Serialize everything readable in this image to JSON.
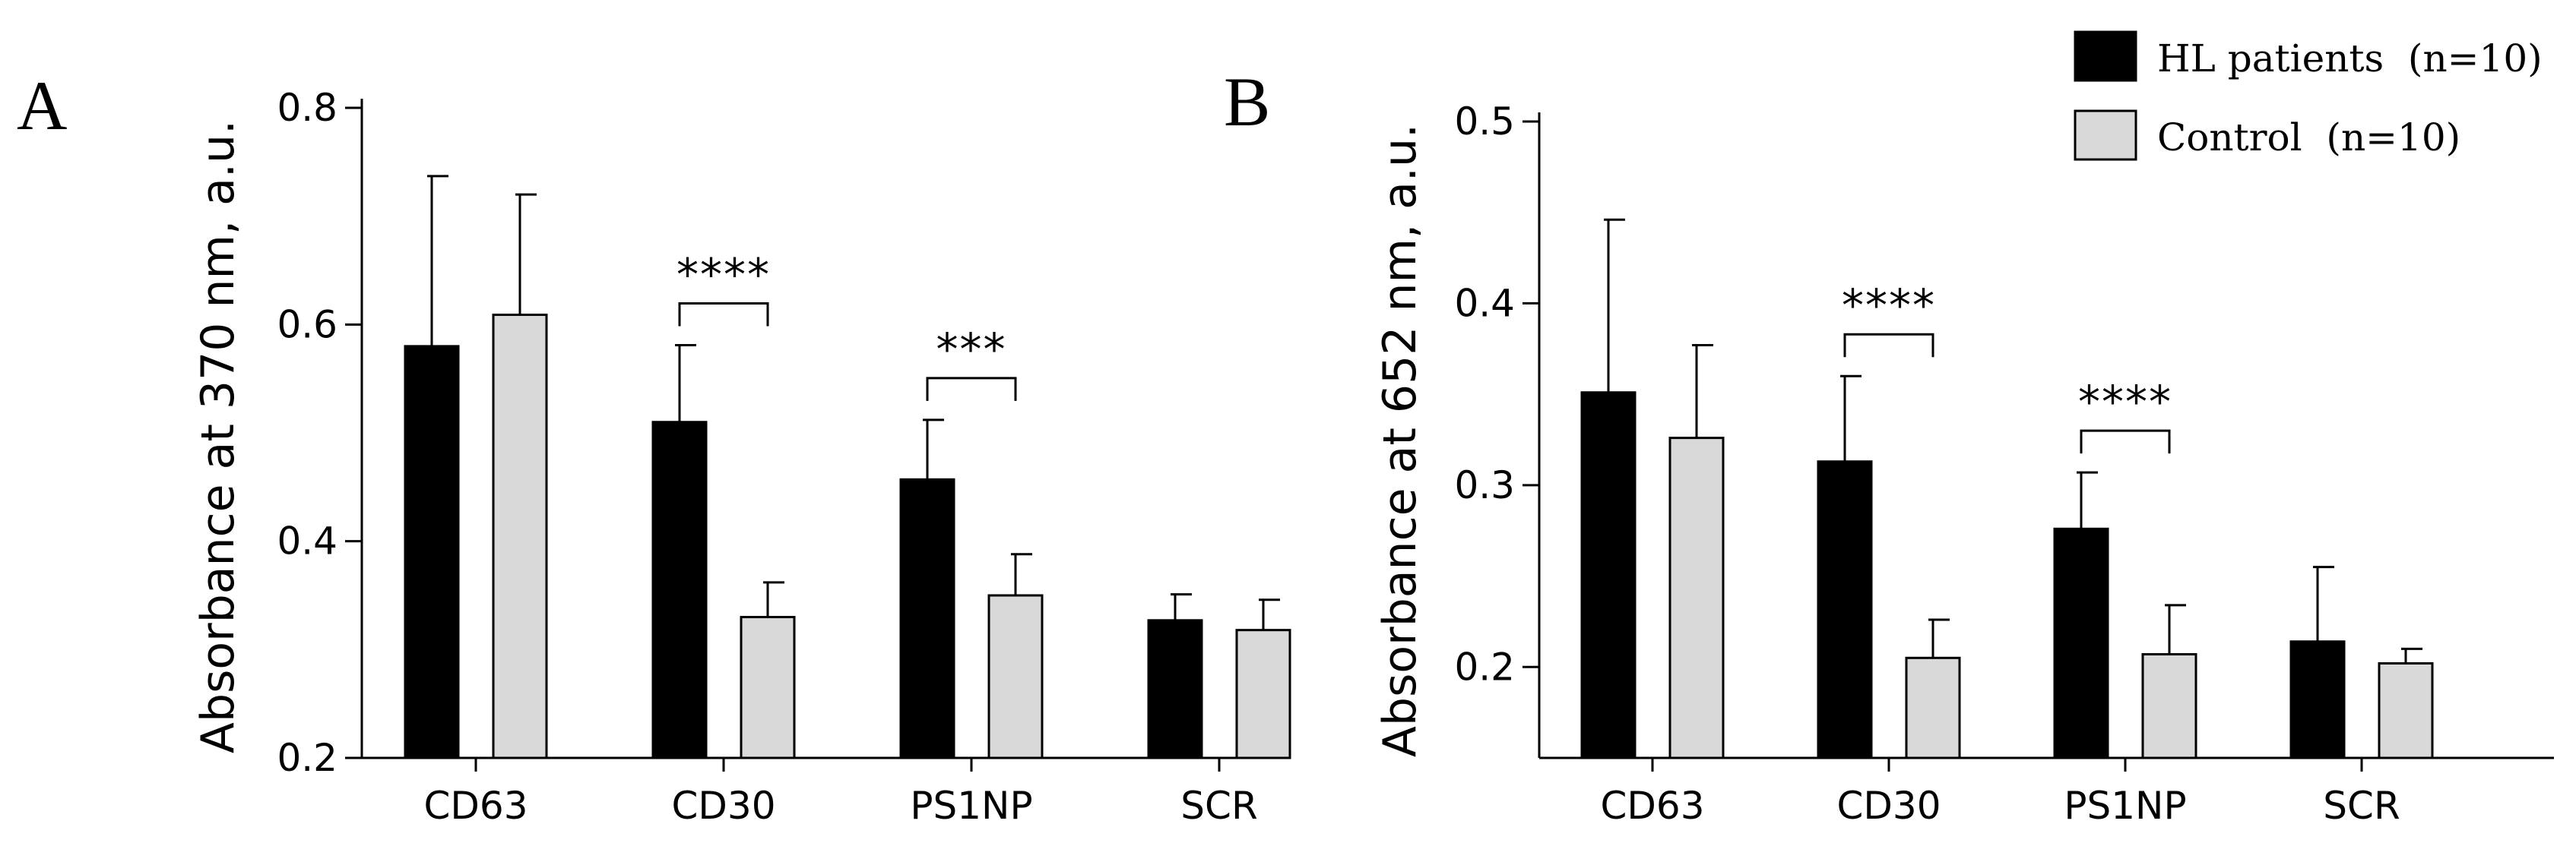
{
  "legend": {
    "items": [
      {
        "label": "HL patients  (n=10)",
        "color": "#000000"
      },
      {
        "label": "Control  (n=10)",
        "color": "#d9d9d9"
      }
    ]
  },
  "chart_data": [
    {
      "panel": "A",
      "type": "bar",
      "ylabel": "Absorbance at 370 nm, a.u.",
      "ylim": [
        0.2,
        0.8
      ],
      "yticks": [
        0.2,
        0.4,
        0.6,
        0.8
      ],
      "ytick_labels": [
        "0.2",
        "0.4",
        "0.6",
        "0.8"
      ],
      "categories": [
        "CD63",
        "CD30",
        "PS1NP",
        "SCR"
      ],
      "series": [
        {
          "name": "HL patients (n=10)",
          "color": "#000000",
          "values": [
            0.58,
            0.51,
            0.457,
            0.327
          ],
          "errors": [
            0.157,
            0.071,
            0.055,
            0.024
          ]
        },
        {
          "name": "Control (n=10)",
          "color": "#d9d9d9",
          "values": [
            0.609,
            0.33,
            0.35,
            0.318
          ],
          "errors": [
            0.111,
            0.032,
            0.038,
            0.028
          ]
        }
      ],
      "significance": [
        {
          "category": "CD30",
          "label": "****"
        },
        {
          "category": "PS1NP",
          "label": "***"
        }
      ]
    },
    {
      "panel": "B",
      "type": "bar",
      "ylabel": "Absorbance at 652 nm, a.u.",
      "ylim": [
        0.15,
        0.5
      ],
      "yticks": [
        0.2,
        0.3,
        0.4,
        0.5
      ],
      "ytick_labels": [
        "0.2",
        "0.3",
        "0.4",
        "0.5"
      ],
      "categories": [
        "CD63",
        "CD30",
        "PS1NP",
        "SCR"
      ],
      "series": [
        {
          "name": "HL patients (n=10)",
          "color": "#000000",
          "values": [
            0.351,
            0.313,
            0.276,
            0.214
          ],
          "errors": [
            0.095,
            0.047,
            0.031,
            0.041
          ]
        },
        {
          "name": "Control (n=10)",
          "color": "#d9d9d9",
          "values": [
            0.326,
            0.205,
            0.207,
            0.202
          ],
          "errors": [
            0.051,
            0.021,
            0.027,
            0.008
          ]
        }
      ],
      "significance": [
        {
          "category": "CD30",
          "label": "****"
        },
        {
          "category": "PS1NP",
          "label": "****"
        }
      ]
    }
  ]
}
